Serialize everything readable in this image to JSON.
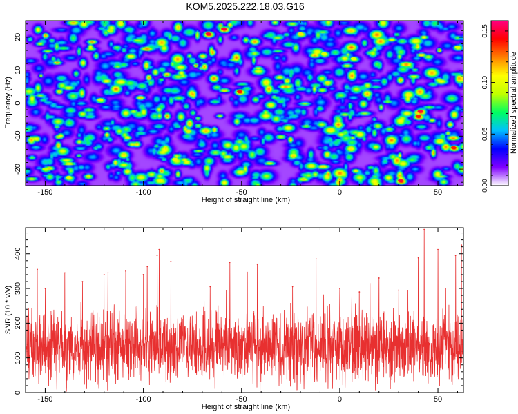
{
  "title": "KOM5.2025.222.18.03.G16",
  "chart_data": [
    {
      "type": "heatmap",
      "xlabel": "Height of straight line (km)",
      "ylabel": "Frequency (Hz)",
      "xlim": [
        -160,
        63
      ],
      "ylim": [
        -25,
        25
      ],
      "x_ticks": [
        -150,
        -100,
        -50,
        0,
        50
      ],
      "y_ticks": [
        -20,
        -10,
        0,
        10,
        20
      ],
      "colorbar": {
        "label": "Normalized spectral amplitude",
        "range": [
          0.0,
          0.16
        ],
        "ticks": [
          0.0,
          0.05,
          0.1,
          0.15
        ],
        "tick_labels": [
          "0.00",
          "0.05",
          "0.10",
          "0.15"
        ],
        "colormap": [
          "#ffffff",
          "#8000ff",
          "#0000ff",
          "#00c0ff",
          "#00ff60",
          "#c0ff00",
          "#ffff00",
          "#ff8000",
          "#ff0000",
          "#ff0080"
        ]
      },
      "hotspots": [
        {
          "x": -67,
          "y": 21,
          "v": 0.15
        },
        {
          "x": -59,
          "y": 22.5,
          "v": 0.15
        },
        {
          "x": -51,
          "y": 3.5,
          "v": 0.14
        },
        {
          "x": -20,
          "y": 21,
          "v": 0.11
        },
        {
          "x": 41,
          "y": -2.5,
          "v": 0.15
        },
        {
          "x": 40,
          "y": -4,
          "v": 0.14
        },
        {
          "x": 31,
          "y": -23.5,
          "v": 0.15
        },
        {
          "x": 58,
          "y": -13.5,
          "v": 0.14
        },
        {
          "x": -150,
          "y": -20,
          "v": 0.09
        },
        {
          "x": -122,
          "y": 1,
          "v": 0.1
        },
        {
          "x": -138,
          "y": -22.5,
          "v": 0.1
        },
        {
          "x": -84,
          "y": -17,
          "v": 0.1
        },
        {
          "x": -8,
          "y": 15,
          "v": 0.1
        },
        {
          "x": 7,
          "y": 13.5,
          "v": 0.1
        },
        {
          "x": -117,
          "y": 22,
          "v": 0.09
        },
        {
          "x": 60,
          "y": 17,
          "v": 0.1
        }
      ]
    },
    {
      "type": "line",
      "xlabel": "Height of straight line (km)",
      "ylabel": "SNR (10 * v/v)",
      "xlim": [
        -160,
        63
      ],
      "ylim": [
        0,
        475
      ],
      "x_ticks": [
        -150,
        -100,
        -50,
        0,
        50
      ],
      "y_ticks": [
        0,
        100,
        200,
        300,
        400
      ],
      "series": [
        {
          "name": "SNR",
          "color": "#e83030",
          "baseline": 130,
          "spread": 80,
          "peaks": [
            {
              "x": 43,
              "y": 470
            },
            {
              "x": 62,
              "y": 425
            },
            {
              "x": -92,
              "y": 412
            },
            {
              "x": 50,
              "y": 412
            },
            {
              "x": 59,
              "y": 395
            },
            {
              "x": 40,
              "y": 388
            },
            {
              "x": -12,
              "y": 385
            },
            {
              "x": -56,
              "y": 375
            },
            {
              "x": -42,
              "y": 370
            },
            {
              "x": -93,
              "y": 395
            },
            {
              "x": -86,
              "y": 378
            },
            {
              "x": -98,
              "y": 363
            },
            {
              "x": -154,
              "y": 355
            },
            {
              "x": -140,
              "y": 345
            },
            {
              "x": -118,
              "y": 345
            },
            {
              "x": -120,
              "y": 340
            },
            {
              "x": -100,
              "y": 340
            },
            {
              "x": -66,
              "y": 305
            },
            {
              "x": -24,
              "y": 305
            },
            {
              "x": 20,
              "y": 330
            },
            {
              "x": -150,
              "y": 300
            },
            {
              "x": -131,
              "y": 320
            },
            {
              "x": -109,
              "y": 350
            },
            {
              "x": 0,
              "y": 300
            },
            {
              "x": 10,
              "y": 290
            },
            {
              "x": 30,
              "y": 295
            }
          ]
        }
      ]
    }
  ]
}
